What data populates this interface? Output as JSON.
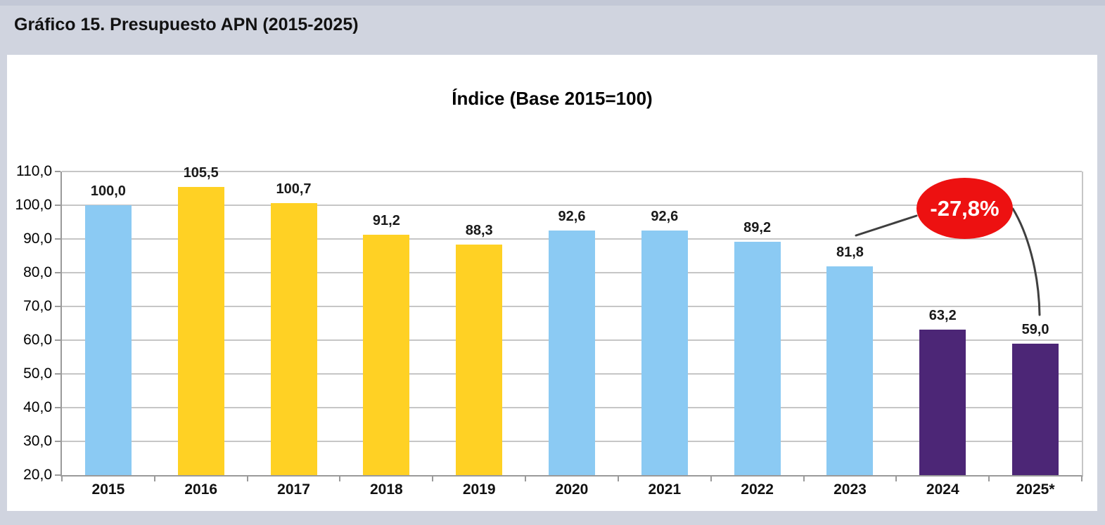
{
  "page": {
    "title": "Gráfico 15. Presupuesto APN (2015-2025)",
    "background_color": "#d0d4df",
    "panel_color": "#ffffff"
  },
  "chart_data": {
    "type": "bar",
    "title": "Índice (Base 2015=100)",
    "categories": [
      "2015",
      "2016",
      "2017",
      "2018",
      "2019",
      "2020",
      "2021",
      "2022",
      "2023",
      "2024",
      "2025*"
    ],
    "values": [
      100.0,
      105.5,
      100.7,
      91.2,
      88.3,
      92.6,
      92.6,
      89.2,
      81.8,
      63.2,
      59.0
    ],
    "value_labels": [
      "100,0",
      "105,5",
      "100,7",
      "91,2",
      "88,3",
      "92,6",
      "92,6",
      "89,2",
      "81,8",
      "63,2",
      "59,0"
    ],
    "bar_color_keys": [
      "blue",
      "yellow",
      "yellow",
      "yellow",
      "yellow",
      "blue",
      "blue",
      "blue",
      "blue",
      "purple",
      "purple"
    ],
    "palette": {
      "blue": "#8BCAF3",
      "yellow": "#FFD124",
      "purple": "#4C2676"
    },
    "ylim": [
      20,
      110
    ],
    "ytick_step": 10,
    "ytick_labels": [
      "110,0",
      "100,0",
      "90,0",
      "80,0",
      "70,0",
      "60,0",
      "50,0",
      "40,0",
      "30,0",
      "20,0"
    ],
    "grid": true,
    "legend": "none",
    "annotation": {
      "label": "-27,8%",
      "fill_color": "#ED1111",
      "text_color": "#ffffff",
      "connects": [
        "2023",
        "2025*"
      ]
    }
  }
}
